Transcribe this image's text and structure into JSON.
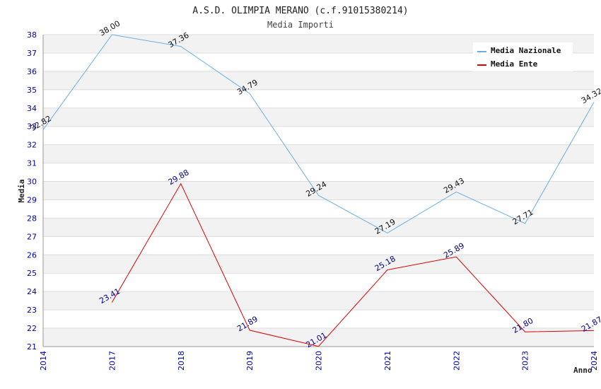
{
  "chart_data": {
    "type": "line",
    "title": "A.S.D. OLIMPIA MERANO (c.f.91015380214)",
    "subtitle": "Media Importi",
    "xlabel": "Anno",
    "ylabel": "Media",
    "ylim": [
      21,
      38
    ],
    "yticks": [
      "21",
      "22",
      "23",
      "24",
      "25",
      "26",
      "27",
      "28",
      "29",
      "30",
      "31",
      "32",
      "33",
      "34",
      "35",
      "36",
      "37",
      "38"
    ],
    "xcategories": [
      "2014",
      "2017",
      "2018",
      "2019",
      "2020",
      "2021",
      "2022",
      "2023",
      "2024"
    ],
    "legend_position": "top-right",
    "series": [
      {
        "name": "Media Nazionale",
        "color": "#6aaee8",
        "values": [
          32.82,
          38.0,
          37.36,
          34.79,
          29.24,
          27.19,
          29.43,
          27.71,
          34.32
        ],
        "labels": [
          "32.82",
          "38.00",
          "37.36",
          "34.79",
          "29.24",
          "27.19",
          "29.43",
          "27.71",
          "34.32"
        ]
      },
      {
        "name": "Media Ente",
        "color": "#dd0000",
        "values": [
          null,
          23.41,
          29.88,
          21.89,
          21.01,
          25.18,
          25.89,
          21.8,
          21.87
        ],
        "labels": [
          null,
          "23.41",
          "29.88",
          "21.89",
          "21.01",
          "25.18",
          "25.89",
          "21.80",
          "21.87"
        ]
      }
    ]
  }
}
